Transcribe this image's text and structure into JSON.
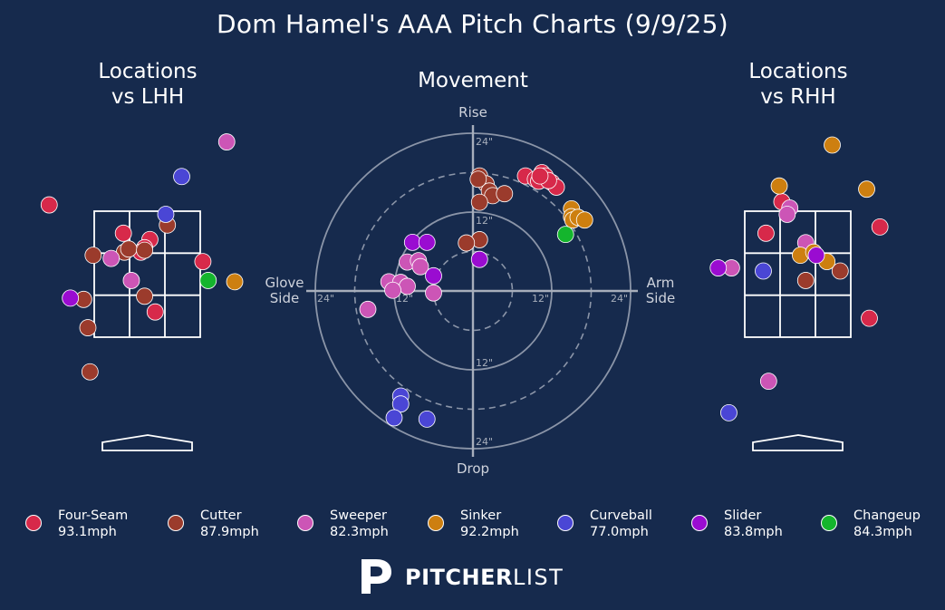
{
  "title": "Dom Hamel's AAA Pitch Charts (9/9/25)",
  "panels": {
    "lhh": {
      "line1": "Locations",
      "line2": "vs LHH"
    },
    "movement": {
      "title": "Movement"
    },
    "rhh": {
      "line1": "Locations",
      "line2": "vs RHH"
    }
  },
  "movement_labels": {
    "rise": "Rise",
    "drop": "Drop",
    "glove": [
      "Glove",
      "Side"
    ],
    "arm": [
      "Arm",
      "Side"
    ],
    "ticks": {
      "top_24": "24\"",
      "top_12": "12\"",
      "bottom_12": "12\"",
      "bottom_24": "24\"",
      "left_24": "24\"",
      "left_12": "12\"",
      "right_12": "12\"",
      "right_24": "24\""
    }
  },
  "colors": {
    "Four-Seam": "#d7294a",
    "Cutter": "#9b3b2c",
    "Sweeper": "#cc55b6",
    "Sinker": "#cd7f10",
    "Curveball": "#4a46d5",
    "Slider": "#9a0cd1",
    "Changeup": "#14b52d"
  },
  "legend": [
    {
      "pitch": "Four-Seam",
      "speed": "93.1mph"
    },
    {
      "pitch": "Cutter",
      "speed": "87.9mph"
    },
    {
      "pitch": "Sweeper",
      "speed": "82.3mph"
    },
    {
      "pitch": "Sinker",
      "speed": "92.2mph"
    },
    {
      "pitch": "Curveball",
      "speed": "77.0mph"
    },
    {
      "pitch": "Slider",
      "speed": "83.8mph"
    },
    {
      "pitch": "Changeup",
      "speed": "84.3mph"
    }
  ],
  "brand": {
    "bold": "PITCHER",
    "light": "LIST"
  },
  "chart_data": [
    {
      "type": "scatter",
      "title": "Locations vs LHH",
      "zone": {
        "cols": 3,
        "rows": 3
      },
      "points": [
        {
          "pitch": "Four-Seam",
          "x": -0.45,
          "y": 0.65
        },
        {
          "pitch": "Four-Seam",
          "x": 0.05,
          "y": 0.55
        },
        {
          "pitch": "Four-Seam",
          "x": -0.05,
          "y": 0.42
        },
        {
          "pitch": "Four-Seam",
          "x": -0.12,
          "y": 0.35
        },
        {
          "pitch": "Four-Seam",
          "x": 1.05,
          "y": 0.2
        },
        {
          "pitch": "Four-Seam",
          "x": 0.15,
          "y": -0.6
        },
        {
          "pitch": "Four-Seam",
          "x": -1.85,
          "y": 1.1
        },
        {
          "pitch": "Cutter",
          "x": -1.02,
          "y": 0.3
        },
        {
          "pitch": "Cutter",
          "x": -0.43,
          "y": 0.35
        },
        {
          "pitch": "Cutter",
          "x": -0.35,
          "y": 0.4
        },
        {
          "pitch": "Cutter",
          "x": -0.05,
          "y": 0.38
        },
        {
          "pitch": "Cutter",
          "x": 0.38,
          "y": 0.78
        },
        {
          "pitch": "Cutter",
          "x": -0.05,
          "y": -0.35
        },
        {
          "pitch": "Cutter",
          "x": -1.2,
          "y": -0.4
        },
        {
          "pitch": "Cutter",
          "x": -1.12,
          "y": -0.85
        },
        {
          "pitch": "Cutter",
          "x": -1.08,
          "y": -1.55
        },
        {
          "pitch": "Sweeper",
          "x": -0.68,
          "y": 0.25
        },
        {
          "pitch": "Sweeper",
          "x": -0.3,
          "y": -0.1
        },
        {
          "pitch": "Sweeper",
          "x": 1.5,
          "y": 2.1
        },
        {
          "pitch": "Sinker",
          "x": 1.65,
          "y": -0.12
        },
        {
          "pitch": "Curveball",
          "x": 0.65,
          "y": 1.55
        },
        {
          "pitch": "Curveball",
          "x": 0.35,
          "y": 0.95
        },
        {
          "pitch": "Slider",
          "x": -1.45,
          "y": -0.38
        },
        {
          "pitch": "Changeup",
          "x": 1.15,
          "y": -0.1
        }
      ]
    },
    {
      "type": "scatter",
      "title": "Movement",
      "xlabel": "Glove Side / Arm Side",
      "ylabel": "Drop / Rise",
      "units": "inches",
      "xlim": [
        -24,
        24
      ],
      "ylim": [
        -24,
        24
      ],
      "rings": [
        6,
        12,
        18,
        24
      ],
      "points": [
        {
          "pitch": "Four-Seam",
          "x": 8,
          "y": 17.5
        },
        {
          "pitch": "Four-Seam",
          "x": 9.5,
          "y": 17
        },
        {
          "pitch": "Four-Seam",
          "x": 10.5,
          "y": 18
        },
        {
          "pitch": "Four-Seam",
          "x": 11,
          "y": 17.5
        },
        {
          "pitch": "Four-Seam",
          "x": 12,
          "y": 16.5
        },
        {
          "pitch": "Four-Seam",
          "x": 12.7,
          "y": 15.8
        },
        {
          "pitch": "Four-Seam",
          "x": 10,
          "y": 16.7
        },
        {
          "pitch": "Four-Seam",
          "x": 11.5,
          "y": 16.8
        },
        {
          "pitch": "Four-Seam",
          "x": 10.2,
          "y": 17.5
        },
        {
          "pitch": "Cutter",
          "x": 1,
          "y": 17.5
        },
        {
          "pitch": "Cutter",
          "x": 2,
          "y": 16.3
        },
        {
          "pitch": "Cutter",
          "x": 2.5,
          "y": 15.2
        },
        {
          "pitch": "Cutter",
          "x": 3,
          "y": 14.5
        },
        {
          "pitch": "Cutter",
          "x": 4.8,
          "y": 14.8
        },
        {
          "pitch": "Cutter",
          "x": 1,
          "y": 13.5
        },
        {
          "pitch": "Cutter",
          "x": 0.8,
          "y": 17
        },
        {
          "pitch": "Cutter",
          "x": 1,
          "y": 7.8
        },
        {
          "pitch": "Cutter",
          "x": -1,
          "y": 7.3
        },
        {
          "pitch": "Sweeper",
          "x": -10,
          "y": 4.4
        },
        {
          "pitch": "Sweeper",
          "x": -8.3,
          "y": 4.6
        },
        {
          "pitch": "Sweeper",
          "x": -8,
          "y": 3.7
        },
        {
          "pitch": "Sweeper",
          "x": -12.8,
          "y": 1.4
        },
        {
          "pitch": "Sweeper",
          "x": -11,
          "y": 1.3
        },
        {
          "pitch": "Sweeper",
          "x": -10,
          "y": 0.7
        },
        {
          "pitch": "Sweeper",
          "x": -12.2,
          "y": 0.1
        },
        {
          "pitch": "Sweeper",
          "x": -6,
          "y": -0.3
        },
        {
          "pitch": "Sweeper",
          "x": -16,
          "y": -2.8
        },
        {
          "pitch": "Sinker",
          "x": 15,
          "y": 12.5
        },
        {
          "pitch": "Sinker",
          "x": 15,
          "y": 11.3
        },
        {
          "pitch": "Sinker",
          "x": 15.2,
          "y": 10.8
        },
        {
          "pitch": "Sinker",
          "x": 16,
          "y": 11.2
        },
        {
          "pitch": "Sinker",
          "x": 17,
          "y": 10.8
        },
        {
          "pitch": "Curveball",
          "x": -11,
          "y": -16
        },
        {
          "pitch": "Curveball",
          "x": -11,
          "y": -17.2
        },
        {
          "pitch": "Curveball",
          "x": -12,
          "y": -19.3
        },
        {
          "pitch": "Curveball",
          "x": -7,
          "y": -19.5
        },
        {
          "pitch": "Slider",
          "x": -9.2,
          "y": 7.4
        },
        {
          "pitch": "Slider",
          "x": -7,
          "y": 7.4
        },
        {
          "pitch": "Slider",
          "x": -6,
          "y": 2.3
        },
        {
          "pitch": "Slider",
          "x": 1,
          "y": 4.8
        },
        {
          "pitch": "Changeup",
          "x": 14.1,
          "y": 8.6
        }
      ]
    },
    {
      "type": "scatter",
      "title": "Locations vs RHH",
      "zone": {
        "cols": 3,
        "rows": 3
      },
      "points": [
        {
          "pitch": "Four-Seam",
          "x": -0.6,
          "y": 0.65
        },
        {
          "pitch": "Four-Seam",
          "x": -0.3,
          "y": 1.15
        },
        {
          "pitch": "Four-Seam",
          "x": 1.55,
          "y": 0.75
        },
        {
          "pitch": "Four-Seam",
          "x": 1.35,
          "y": -0.7
        },
        {
          "pitch": "Cutter",
          "x": 0.15,
          "y": -0.1
        },
        {
          "pitch": "Cutter",
          "x": 0.8,
          "y": 0.05
        },
        {
          "pitch": "Sweeper",
          "x": -0.15,
          "y": 1.05
        },
        {
          "pitch": "Sweeper",
          "x": -0.2,
          "y": 0.95
        },
        {
          "pitch": "Sweeper",
          "x": 0.15,
          "y": 0.5
        },
        {
          "pitch": "Sweeper",
          "x": -1.25,
          "y": 0.1
        },
        {
          "pitch": "Sweeper",
          "x": -0.55,
          "y": -1.7
        },
        {
          "pitch": "Sinker",
          "x": -0.35,
          "y": 1.4
        },
        {
          "pitch": "Sinker",
          "x": 0.65,
          "y": 2.05
        },
        {
          "pitch": "Sinker",
          "x": 1.3,
          "y": 1.35
        },
        {
          "pitch": "Sinker",
          "x": 0.05,
          "y": 0.3
        },
        {
          "pitch": "Sinker",
          "x": 0.3,
          "y": 0.35
        },
        {
          "pitch": "Sinker",
          "x": 0.55,
          "y": 0.2
        },
        {
          "pitch": "Curveball",
          "x": -0.65,
          "y": 0.05
        },
        {
          "pitch": "Curveball",
          "x": -1.3,
          "y": -2.2
        },
        {
          "pitch": "Slider",
          "x": 0.35,
          "y": 0.3
        },
        {
          "pitch": "Slider",
          "x": -1.5,
          "y": 0.1
        }
      ]
    }
  ]
}
